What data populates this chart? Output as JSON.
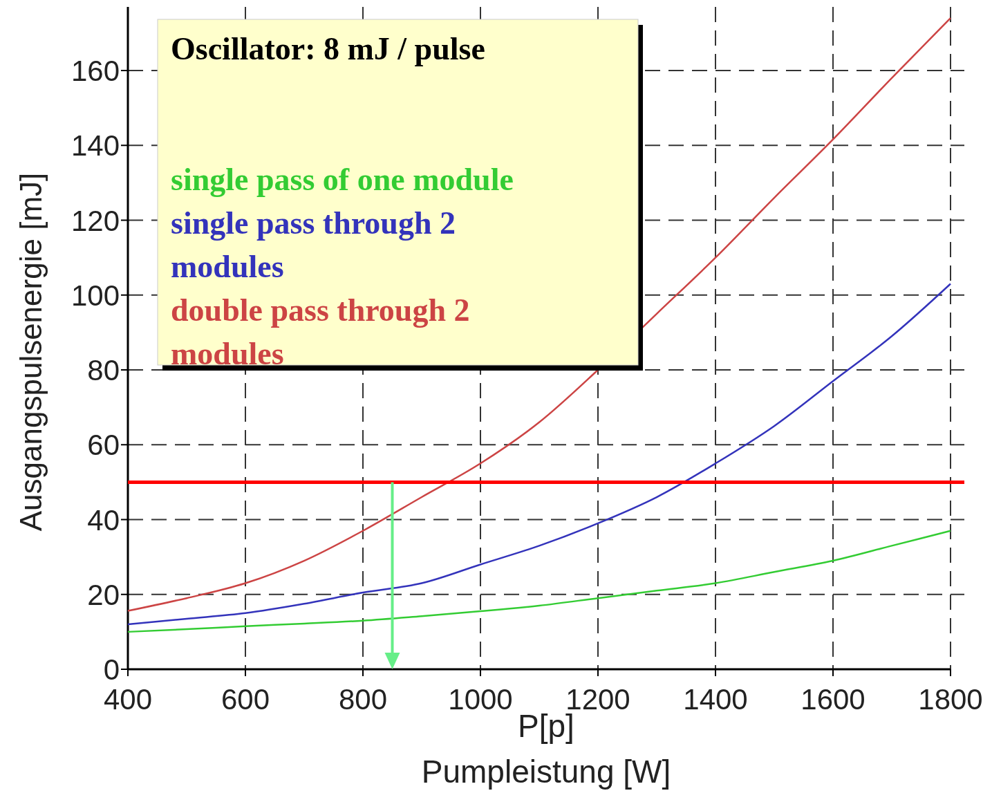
{
  "chart_data": {
    "type": "line",
    "xlabel": "P[p]\nPumpleistung [W]",
    "ylabel": "Ausgangspulsenergie [mJ]",
    "legend_title": "Oscillator: 8 mJ / pulse",
    "legend": "top left",
    "grid": true,
    "x": [
      400,
      500,
      600,
      700,
      800,
      900,
      1000,
      1100,
      1200,
      1300,
      1400,
      1500,
      1600,
      1700,
      1800
    ],
    "xlim": [
      400,
      1800
    ],
    "xticks": [
      400,
      600,
      800,
      1000,
      1200,
      1400,
      1600,
      1800
    ],
    "ylim": [
      0,
      177
    ],
    "yticks": [
      0,
      20,
      40,
      60,
      80,
      100,
      120,
      140,
      160
    ],
    "series": [
      {
        "name": "single pass of one module",
        "color": "#33cc33",
        "values": [
          10,
          10.7,
          11.5,
          12.2,
          13,
          14.2,
          15.5,
          17,
          19,
          21,
          23,
          26,
          29,
          33,
          37
        ]
      },
      {
        "name": "single pass through 2 modules",
        "color": "#3333bb",
        "values": [
          12,
          13.5,
          15,
          17.5,
          20.5,
          23,
          28,
          33,
          39,
          46,
          55,
          65,
          77,
          89,
          103
        ]
      },
      {
        "name": "double pass through 2 modules",
        "color": "#cc4444",
        "values": [
          15.6,
          19,
          23,
          29,
          37,
          46,
          55,
          66,
          80,
          95,
          110,
          126,
          141.6,
          158,
          174
        ]
      }
    ],
    "ref_lines": [
      {
        "axis": "y",
        "value": 50,
        "color": "#ff0000"
      },
      {
        "axis": "x",
        "value": 850,
        "color": "#66ee88"
      }
    ]
  }
}
